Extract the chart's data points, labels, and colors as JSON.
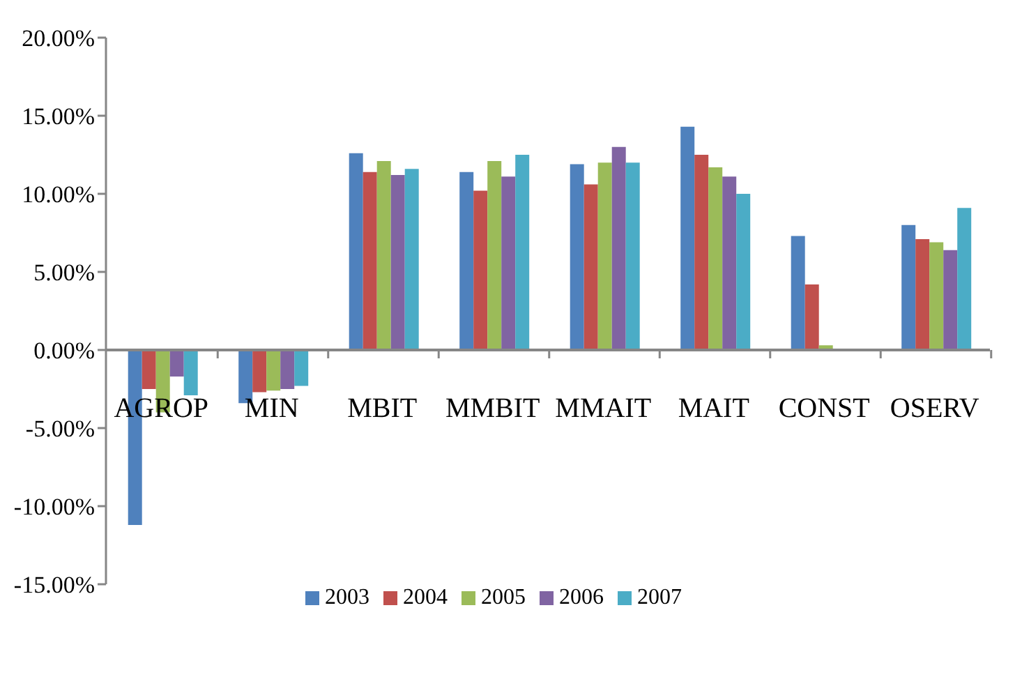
{
  "chart_data": {
    "type": "bar",
    "categories": [
      "AGROP",
      "MIN",
      "MBIT",
      "MMBIT",
      "MMAIT",
      "MAIT",
      "CONST",
      "OSERV"
    ],
    "series": [
      {
        "name": "2003",
        "color": "#4f81bd",
        "values": [
          -11.2,
          -3.4,
          12.6,
          11.4,
          11.9,
          14.3,
          7.3,
          8.0
        ]
      },
      {
        "name": "2004",
        "color": "#c0504d",
        "values": [
          -2.5,
          -2.7,
          11.4,
          10.2,
          10.6,
          12.5,
          4.2,
          7.1
        ]
      },
      {
        "name": "2005",
        "color": "#9bbb59",
        "values": [
          -4.0,
          -2.6,
          12.1,
          12.1,
          12.0,
          11.7,
          0.3,
          6.9
        ]
      },
      {
        "name": "2006",
        "color": "#8064a2",
        "values": [
          -1.7,
          -2.5,
          11.2,
          11.1,
          13.0,
          11.1,
          0,
          6.4
        ]
      },
      {
        "name": "2007",
        "color": "#4bacc6",
        "values": [
          -2.9,
          -2.3,
          11.6,
          12.5,
          12.0,
          10.0,
          0,
          9.1
        ]
      }
    ],
    "ylim": [
      -15,
      20
    ],
    "yticks": [
      {
        "value": -15,
        "label": "-15.00%"
      },
      {
        "value": -10,
        "label": "-10.00%"
      },
      {
        "value": -5,
        "label": "-5.00%"
      },
      {
        "value": 0,
        "label": "0.00%"
      },
      {
        "value": 5,
        "label": "5.00%"
      },
      {
        "value": 10,
        "label": "10.00%"
      },
      {
        "value": 15,
        "label": "15.00%"
      },
      {
        "value": 20,
        "label": "20.00%"
      }
    ],
    "legend": "bottom"
  }
}
